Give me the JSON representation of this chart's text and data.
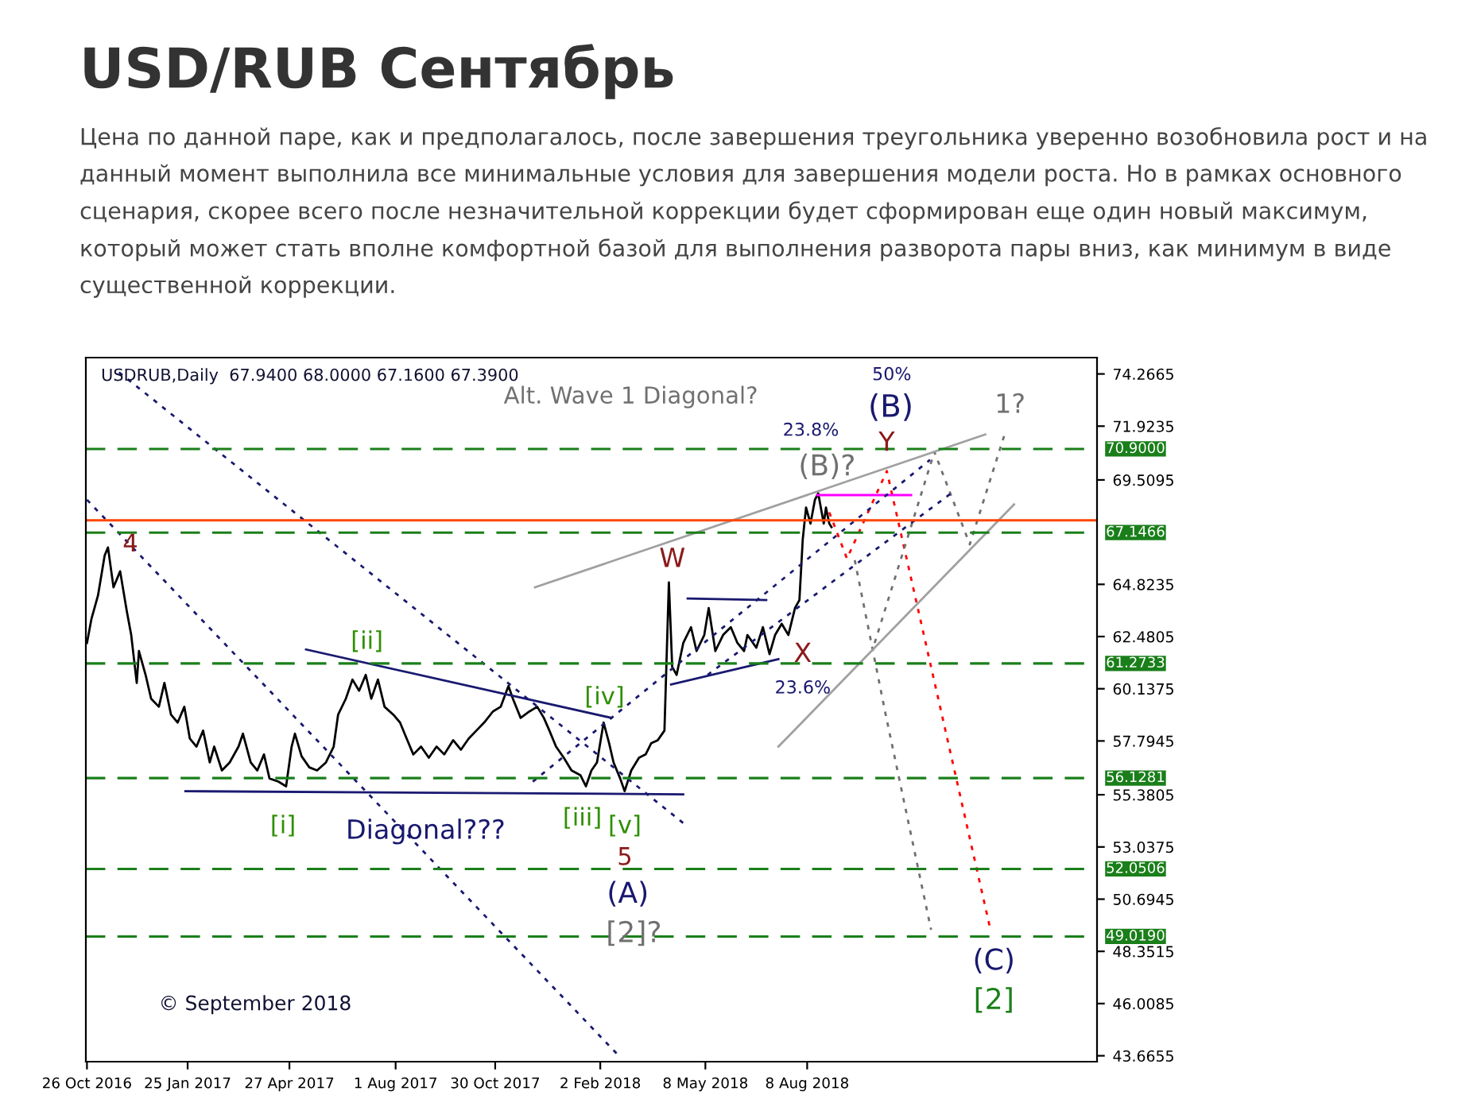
{
  "chart_data": {
    "type": "line",
    "title": "USD/RUB Сентябрь",
    "subtitle": "Цена по данной паре, как и предполагалось, после завершения треугольника уверенно возобновила рост и на данный момент выполнила все минимальные условия для завершения модели роста. Но в рамках основного сценария, скорее всего после незначительной коррекции будет сформирован еще один новый максимум, который может стать вполне комфортной базой для выполнения разворота пары вниз, как минимум в виде существенной коррекции.",
    "series": [
      {
        "color": "#000000",
        "type": "line",
        "line_style": "solid",
        "x": [
          "2016-10-26",
          "2016-10-30",
          "2016-11-05",
          "2016-11-11",
          "2016-11-14",
          "2016-11-19",
          "2016-11-25",
          "2016-12-01",
          "2016-12-05",
          "2016-12-10",
          "2016-12-12",
          "2016-12-18",
          "2016-12-23",
          "2016-12-30",
          "2017-01-04",
          "2017-01-10",
          "2017-01-16",
          "2017-01-22",
          "2017-01-27",
          "2017-02-02",
          "2017-02-08",
          "2017-02-14",
          "2017-02-18",
          "2017-02-25",
          "2017-03-04",
          "2017-03-12",
          "2017-03-16",
          "2017-03-23",
          "2017-03-29",
          "2017-04-04",
          "2017-04-09",
          "2017-04-17",
          "2017-04-24",
          "2017-04-29",
          "2017-05-02",
          "2017-05-08",
          "2017-05-15",
          "2017-05-22",
          "2017-05-30",
          "2017-06-06",
          "2017-06-10",
          "2017-06-17",
          "2017-06-23",
          "2017-06-29",
          "2017-07-05",
          "2017-07-10",
          "2017-07-16",
          "2017-07-22",
          "2017-07-30",
          "2017-08-05",
          "2017-08-11",
          "2017-08-17",
          "2017-08-24",
          "2017-08-31",
          "2017-09-07",
          "2017-09-14",
          "2017-09-22",
          "2017-09-29",
          "2017-10-06",
          "2017-10-13",
          "2017-10-20",
          "2017-10-28",
          "2017-11-04",
          "2017-11-11",
          "2017-11-15",
          "2017-11-22",
          "2017-11-30",
          "2017-12-07",
          "2017-12-13",
          "2017-12-18",
          "2017-12-24",
          "2017-12-31",
          "2018-01-07",
          "2018-01-15",
          "2018-01-20",
          "2018-01-25",
          "2018-01-30",
          "2018-02-05",
          "2018-02-10",
          "2018-02-14",
          "2018-02-20",
          "2018-02-24",
          "2018-03-02",
          "2018-03-09",
          "2018-03-15",
          "2018-03-20",
          "2018-03-26",
          "2018-04-01",
          "2018-04-04",
          "2018-04-05",
          "2018-04-08",
          "2018-04-12",
          "2018-04-18",
          "2018-04-25",
          "2018-04-30",
          "2018-05-07",
          "2018-05-11",
          "2018-05-17",
          "2018-05-24",
          "2018-05-31",
          "2018-06-06",
          "2018-06-12",
          "2018-06-15",
          "2018-06-23",
          "2018-06-29",
          "2018-07-05",
          "2018-07-10",
          "2018-07-16",
          "2018-07-22",
          "2018-07-28",
          "2018-08-01",
          "2018-08-04",
          "2018-08-07",
          "2018-08-11",
          "2018-08-15",
          "2018-08-18",
          "2018-08-23",
          "2018-08-25",
          "2018-08-28",
          "2018-08-30"
        ],
        "values": [
          62.19,
          63.26,
          64.33,
          66.12,
          66.48,
          64.69,
          65.41,
          63.62,
          62.55,
          60.4,
          61.83,
          60.76,
          59.69,
          59.33,
          60.4,
          58.97,
          58.62,
          59.33,
          57.9,
          57.54,
          58.26,
          56.83,
          57.54,
          56.47,
          56.83,
          57.54,
          58.12,
          56.83,
          56.47,
          57.19,
          56.11,
          55.97,
          55.76,
          57.54,
          58.12,
          57.11,
          56.61,
          56.47,
          56.83,
          57.54,
          58.97,
          59.69,
          60.55,
          60.05,
          60.76,
          59.69,
          60.55,
          59.33,
          58.97,
          58.62,
          57.9,
          57.19,
          57.54,
          57.04,
          57.54,
          57.19,
          57.83,
          57.4,
          57.9,
          58.26,
          58.62,
          59.12,
          59.33,
          60.26,
          59.69,
          58.83,
          59.12,
          59.33,
          58.83,
          58.26,
          57.54,
          57.04,
          56.47,
          56.26,
          55.76,
          56.47,
          56.83,
          58.62,
          57.69,
          56.83,
          56.11,
          55.54,
          56.47,
          57.04,
          57.19,
          57.69,
          57.83,
          58.26,
          63.26,
          64.91,
          61.12,
          60.76,
          62.19,
          62.9,
          61.83,
          62.55,
          63.76,
          61.83,
          62.55,
          62.9,
          62.19,
          61.83,
          62.55,
          61.98,
          62.9,
          61.69,
          62.55,
          63.05,
          62.55,
          63.76,
          64.12,
          66.84,
          68.27,
          67.55,
          68.62,
          68.91,
          67.55,
          68.27,
          67.55,
          67.39
        ]
      },
      {
        "color": "#ff0000",
        "type": "line",
        "line_style": "dotted",
        "x": [
          "2018-08-28",
          "2018-09-13",
          "2018-10-19",
          "2019-01-20"
        ],
        "values": [
          68.05,
          65.98,
          69.91,
          49.47
        ]
      },
      {
        "color": "#707070",
        "type": "line",
        "line_style": "dotted",
        "x": [
          "2018-09-20",
          "2018-10-18",
          "2018-11-28"
        ],
        "values": [
          65.91,
          58.97,
          49.32
        ]
      },
      {
        "color": "#707070",
        "type": "line",
        "line_style": "dotted",
        "x": [
          "2018-10-08",
          "2018-12-01",
          "2019-01-02",
          "2019-02-02"
        ],
        "values": [
          62.19,
          70.77,
          66.62,
          71.48
        ]
      },
      {
        "color": "#ff00ff",
        "type": "line",
        "line_style": "solid",
        "x": [
          "2018-08-17",
          "2018-11-10"
        ],
        "values": [
          68.83,
          68.83
        ]
      },
      {
        "color": "#a0a0a0",
        "type": "line",
        "line_style": "solid",
        "x": [
          "2017-12-05",
          "2019-01-16"
        ],
        "values": [
          64.69,
          71.55
        ]
      },
      {
        "color": "#a0a0a0",
        "type": "line",
        "line_style": "solid",
        "x": [
          "2018-07-13",
          "2019-02-11"
        ],
        "values": [
          57.54,
          68.41
        ]
      },
      {
        "color": "#191970",
        "type": "line",
        "line_style": "solid",
        "x": [
          "2017-05-12",
          "2018-02-12"
        ],
        "values": [
          61.9,
          58.83
        ]
      },
      {
        "color": "#191970",
        "type": "line",
        "line_style": "solid",
        "x": [
          "2017-01-23",
          "2018-04-18"
        ],
        "values": [
          55.54,
          55.4
        ]
      },
      {
        "color": "#191970",
        "type": "line",
        "line_style": "solid",
        "x": [
          "2018-04-22",
          "2018-07-02"
        ],
        "values": [
          64.19,
          64.12
        ]
      },
      {
        "color": "#191970",
        "type": "line",
        "line_style": "solid",
        "x": [
          "2018-04-07",
          "2018-07-13"
        ],
        "values": [
          60.33,
          61.47
        ]
      },
      {
        "color": "#191970",
        "type": "line",
        "line_style": "dotted",
        "x": [
          "2016-11-24",
          "2018-04-18"
        ],
        "values": [
          74.34,
          54.11
        ]
      },
      {
        "color": "#191970",
        "type": "line",
        "line_style": "dotted",
        "x": [
          "2016-10-26",
          "2018-02-20"
        ],
        "values": [
          68.62,
          43.6
        ]
      },
      {
        "color": "#191970",
        "type": "line",
        "line_style": "dotted",
        "x": [
          "2017-12-03",
          "2018-11-27"
        ],
        "values": [
          55.97,
          70.41
        ]
      },
      {
        "color": "#191970",
        "type": "line",
        "line_style": "dotted",
        "x": [
          "2018-05-10",
          "2018-12-18"
        ],
        "values": [
          60.76,
          68.98
        ]
      }
    ],
    "xlim": [
      "2016-10-25",
      "2019-04-27"
    ],
    "xticks": [
      {
        "value": "2016-10-26",
        "label": "26 Oct 2016"
      },
      {
        "value": "2017-01-25",
        "label": "25 Jan 2017"
      },
      {
        "value": "2017-04-27",
        "label": "27 Apr 2017"
      },
      {
        "value": "2017-08-01",
        "label": "1 Aug 2017"
      },
      {
        "value": "2017-10-30",
        "label": "30 Oct 2017"
      },
      {
        "value": "2018-02-02",
        "label": "2 Feb 2018"
      },
      {
        "value": "2018-05-08",
        "label": "8 May 2018"
      },
      {
        "value": "2018-08-08",
        "label": "8 Aug 2018"
      }
    ],
    "ylim": [
      43.4,
      75.0
    ],
    "yticks": [
      43.6655,
      46.0085,
      48.3515,
      50.6945,
      53.0375,
      55.3805,
      57.7945,
      60.1375,
      62.4805,
      64.8235,
      69.5095,
      71.9235,
      74.2665
    ],
    "ref_lines": [
      {
        "axis": "y",
        "value": 70.9,
        "label": "70.9000",
        "color": "#1a7f1a",
        "line_style": "dashed"
      },
      {
        "axis": "y",
        "value": 67.1466,
        "label": "67.1466",
        "color": "#1a7f1a",
        "line_style": "dashed"
      },
      {
        "axis": "y",
        "value": 61.2733,
        "label": "61.2733",
        "color": "#1a7f1a",
        "line_style": "dashed"
      },
      {
        "axis": "y",
        "value": 56.1281,
        "label": "56.1281",
        "color": "#1a7f1a",
        "line_style": "dashed"
      },
      {
        "axis": "y",
        "value": 52.0506,
        "label": "52.0506",
        "color": "#1a7f1a",
        "line_style": "dashed"
      },
      {
        "axis": "y",
        "value": 49.019,
        "label": "49.0190",
        "color": "#1a7f1a",
        "line_style": "dashed"
      },
      {
        "axis": "y",
        "value": 67.7,
        "color": "#ff4500",
        "line_style": "solid"
      }
    ],
    "annotations": [
      "USDRUB,Daily  67.9400 68.0000 67.1600 67.3900",
      "© September 2018",
      "4",
      "[ii]",
      "[i]",
      "Diagonal???",
      "[iii]",
      "[iv]",
      "[v]",
      "5",
      "(A)",
      "[2]?",
      "W",
      "X",
      "23.6%",
      "(B)?",
      "23.8%",
      "Y",
      "(B)",
      "50%",
      "1?",
      "Alt. Wave 1 Diagonal?",
      "(C)",
      "[2]"
    ],
    "grid": false,
    "legend": false
  }
}
